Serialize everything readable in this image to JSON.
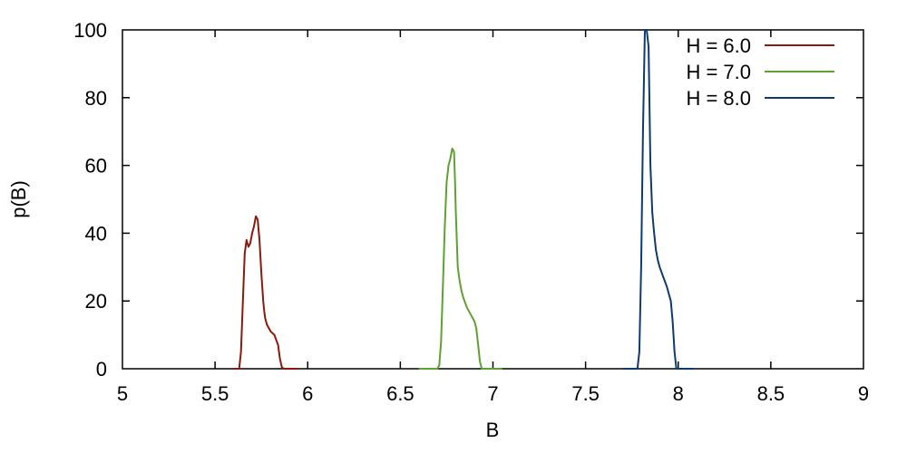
{
  "chart_data": {
    "type": "line",
    "title": "",
    "xlabel": "B",
    "ylabel": "p(B)",
    "xlim": [
      5,
      9
    ],
    "ylim": [
      0,
      100
    ],
    "xticks": [
      "5",
      "5.5",
      "6",
      "6.5",
      "7",
      "7.5",
      "8",
      "8.5",
      "9"
    ],
    "yticks": [
      "0",
      "20",
      "40",
      "60",
      "80",
      "100"
    ],
    "grid": false,
    "legend_position": "top-right",
    "series": [
      {
        "name": "H = 6.0",
        "color": "#8b1a0e",
        "x": [
          5.6,
          5.63,
          5.64,
          5.65,
          5.66,
          5.67,
          5.68,
          5.69,
          5.7,
          5.71,
          5.72,
          5.73,
          5.74,
          5.75,
          5.76,
          5.765,
          5.77,
          5.775,
          5.78,
          5.79,
          5.8,
          5.82,
          5.84,
          5.85,
          5.86,
          5.87,
          5.88,
          5.95
        ],
        "y": [
          0,
          0,
          5,
          20,
          34,
          38,
          36,
          37,
          40,
          42,
          45,
          44,
          38,
          28,
          20,
          17,
          15,
          14,
          13,
          12,
          11,
          10,
          7,
          3,
          0.5,
          0,
          0,
          0
        ]
      },
      {
        "name": "H = 7.0",
        "color": "#5ea132",
        "x": [
          6.6,
          6.7,
          6.71,
          6.72,
          6.73,
          6.74,
          6.75,
          6.76,
          6.77,
          6.78,
          6.79,
          6.795,
          6.8,
          6.81,
          6.82,
          6.83,
          6.84,
          6.86,
          6.88,
          6.9,
          6.91,
          6.92,
          6.93,
          6.94,
          7.05
        ],
        "y": [
          0,
          0,
          1,
          8,
          25,
          42,
          55,
          60,
          62,
          65,
          64,
          56,
          46,
          30,
          26,
          23,
          21,
          18,
          16,
          14,
          12,
          7,
          2,
          0,
          0
        ]
      },
      {
        "name": "H = 8.0",
        "color": "#0e3b6e",
        "x": [
          7.7,
          7.78,
          7.79,
          7.8,
          7.81,
          7.82,
          7.83,
          7.84,
          7.85,
          7.86,
          7.87,
          7.88,
          7.89,
          7.9,
          7.92,
          7.94,
          7.95,
          7.96,
          7.97,
          7.98,
          7.99,
          8.08
        ],
        "y": [
          0,
          0,
          5,
          30,
          70,
          100,
          100,
          95,
          60,
          46,
          40,
          35,
          32,
          30,
          27,
          24,
          22,
          20,
          14,
          5,
          0,
          0
        ]
      }
    ]
  }
}
